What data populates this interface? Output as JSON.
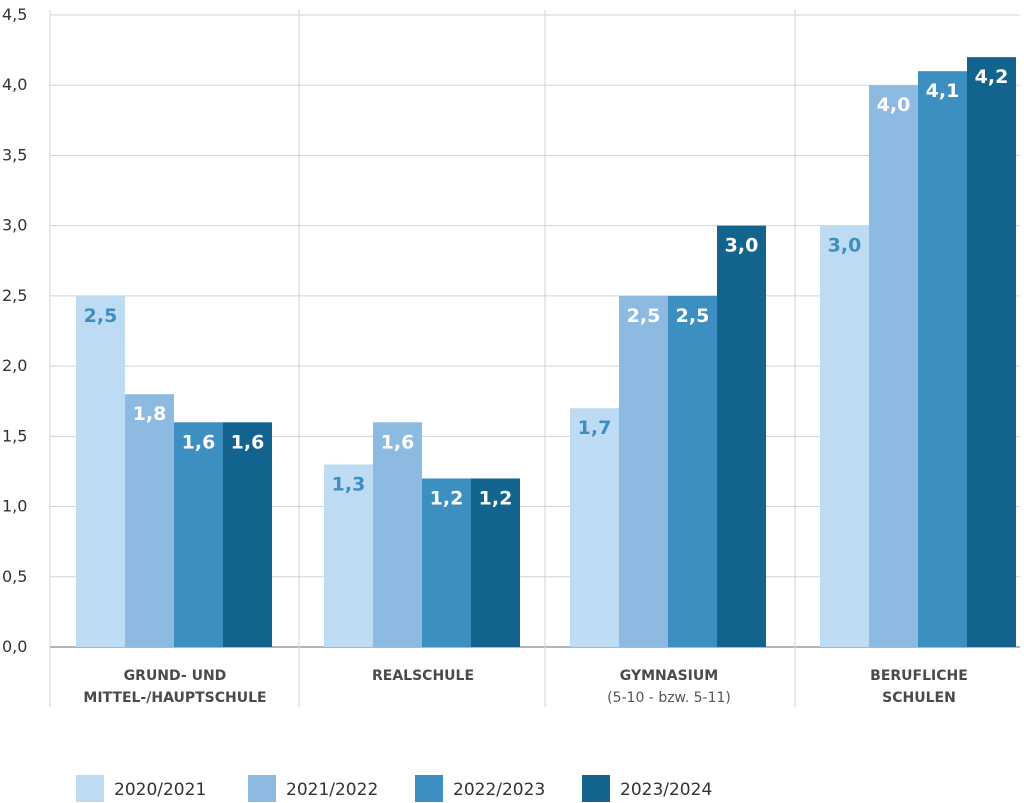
{
  "chart_data": {
    "type": "bar",
    "categories": [
      {
        "lines": [
          "GRUND- UND",
          "MITTEL-/HAUPTSCHULE"
        ],
        "note": ""
      },
      {
        "lines": [
          "REALSCHULE"
        ],
        "note": ""
      },
      {
        "lines": [
          "GYMNASIUM"
        ],
        "note": "(5-10 - bzw. 5-11)"
      },
      {
        "lines": [
          "BERUFLICHE",
          "SCHULEN"
        ],
        "note": ""
      }
    ],
    "series": [
      {
        "name": "2020/2021",
        "values": [
          2.5,
          1.3,
          1.7,
          3.0
        ],
        "labels": [
          "2,5",
          "1,3",
          "1,7",
          "3,0"
        ]
      },
      {
        "name": "2021/2022",
        "values": [
          1.8,
          1.6,
          2.5,
          4.0
        ],
        "labels": [
          "1,8",
          "1,6",
          "2,5",
          "4,0"
        ]
      },
      {
        "name": "2022/2023",
        "values": [
          1.6,
          1.2,
          2.5,
          4.1
        ],
        "labels": [
          "1,6",
          "1,2",
          "2,5",
          "4,1"
        ]
      },
      {
        "name": "2023/2024",
        "values": [
          1.6,
          1.2,
          3.0,
          4.2
        ],
        "labels": [
          "1,6",
          "1,2",
          "3,0",
          "4,2"
        ]
      }
    ],
    "colors": [
      "#bddbf3",
      "#8dbae0",
      "#3c8fc0",
      "#12648f"
    ],
    "label_colors": [
      "#3c8fc0",
      "#ffffff",
      "#ffffff",
      "#ffffff"
    ],
    "ylim": [
      0,
      4.5
    ],
    "yticks": [
      {
        "value": 0,
        "label": "0,0"
      },
      {
        "value": 0.5,
        "label": "0,5"
      },
      {
        "value": 1.0,
        "label": "1,0"
      },
      {
        "value": 1.5,
        "label": "1,5"
      },
      {
        "value": 2.0,
        "label": "2,0"
      },
      {
        "value": 2.5,
        "label": "2,5"
      },
      {
        "value": 3.0,
        "label": "3,0"
      },
      {
        "value": 3.5,
        "label": "3,5"
      },
      {
        "value": 4.0,
        "label": "4,0"
      },
      {
        "value": 4.5,
        "label": "4,5"
      }
    ],
    "grid": true,
    "legend_position": "bottom"
  }
}
